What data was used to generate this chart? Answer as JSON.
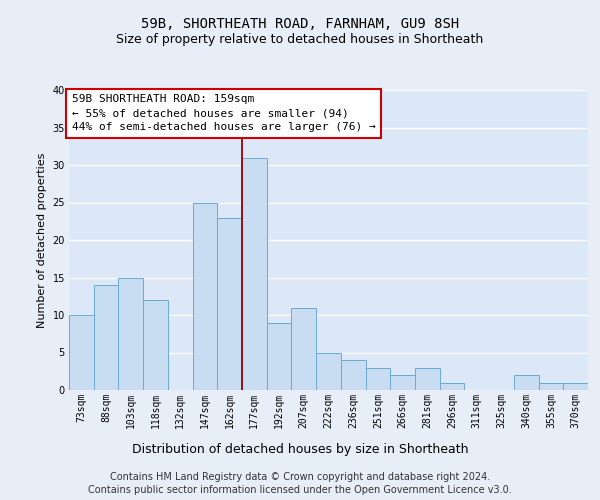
{
  "title1": "59B, SHORTHEATH ROAD, FARNHAM, GU9 8SH",
  "title2": "Size of property relative to detached houses in Shortheath",
  "xlabel": "Distribution of detached houses by size in Shortheath",
  "ylabel": "Number of detached properties",
  "categories": [
    "73sqm",
    "88sqm",
    "103sqm",
    "118sqm",
    "132sqm",
    "147sqm",
    "162sqm",
    "177sqm",
    "192sqm",
    "207sqm",
    "222sqm",
    "236sqm",
    "251sqm",
    "266sqm",
    "281sqm",
    "296sqm",
    "311sqm",
    "325sqm",
    "340sqm",
    "355sqm",
    "370sqm"
  ],
  "values": [
    10,
    14,
    15,
    12,
    0,
    25,
    23,
    31,
    9,
    11,
    5,
    4,
    3,
    2,
    3,
    1,
    0,
    0,
    2,
    1,
    1
  ],
  "bar_color": "#c9ddf2",
  "bar_edge_color": "#6aaad4",
  "reference_line_x": 6.5,
  "reference_line_color": "#990000",
  "annotation_line1": "59B SHORTHEATH ROAD: 159sqm",
  "annotation_line2": "← 55% of detached houses are smaller (94)",
  "annotation_line3": "44% of semi-detached houses are larger (76) →",
  "annotation_box_color": "#ffffff",
  "annotation_box_edge": "#cc0000",
  "ylim": [
    0,
    40
  ],
  "yticks": [
    0,
    5,
    10,
    15,
    20,
    25,
    30,
    35,
    40
  ],
  "footnote1": "Contains HM Land Registry data © Crown copyright and database right 2024.",
  "footnote2": "Contains public sector information licensed under the Open Government Licence v3.0.",
  "fig_bg_color": "#e8eef8",
  "plot_bg_color": "#dce8f8",
  "grid_color": "#ffffff",
  "title1_fontsize": 10,
  "title2_fontsize": 9,
  "axis_label_fontsize": 8,
  "tick_fontsize": 7,
  "annotation_fontsize": 8,
  "footnote_fontsize": 7
}
